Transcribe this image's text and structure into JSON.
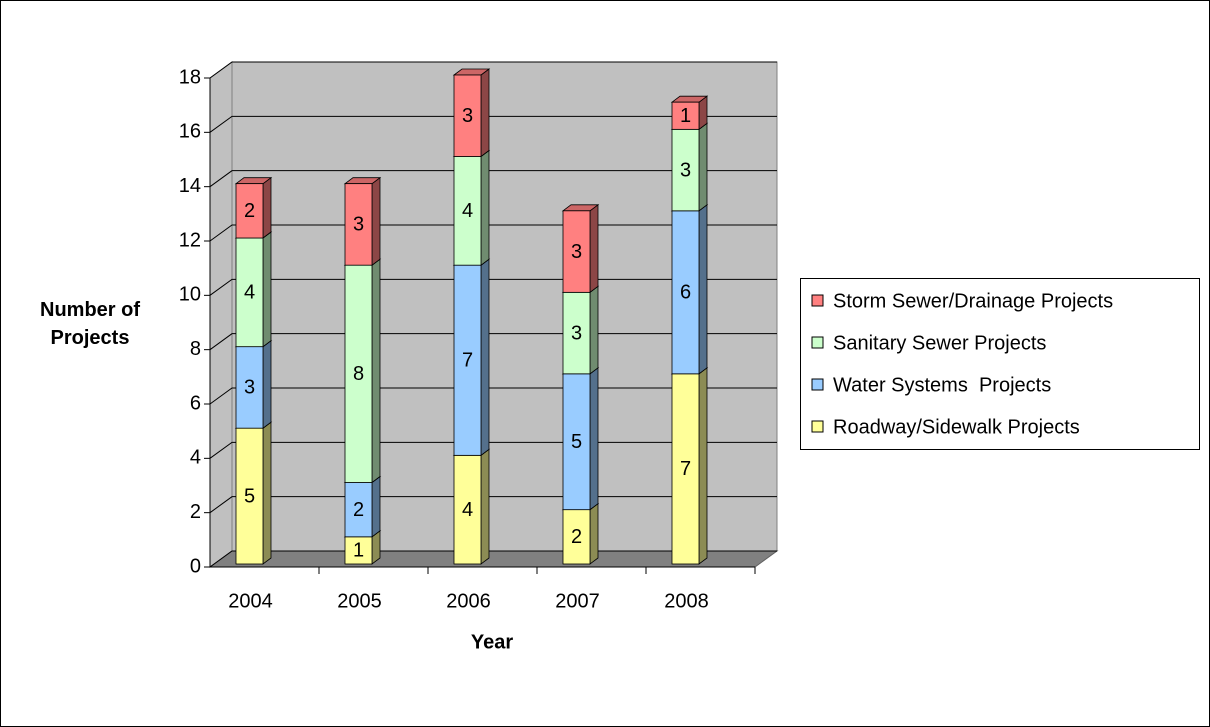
{
  "chart_data": {
    "type": "stacked_bar_3d",
    "x_label": "Year",
    "y_label": "Number of Projects",
    "categories": [
      "2004",
      "2005",
      "2006",
      "2007",
      "2008"
    ],
    "series": [
      {
        "name": "Roadway/Sidewalk Projects",
        "color": "#ffff99",
        "values": [
          5,
          1,
          4,
          2,
          7
        ]
      },
      {
        "name": "Water Systems  Projects",
        "color": "#99ccff",
        "values": [
          3,
          2,
          7,
          5,
          6
        ]
      },
      {
        "name": "Sanitary Sewer Projects",
        "color": "#ccffcc",
        "values": [
          4,
          8,
          4,
          3,
          3
        ]
      },
      {
        "name": "Storm Sewer/Drainage Projects",
        "color": "#ff8080",
        "values": [
          2,
          3,
          3,
          3,
          1
        ]
      }
    ],
    "ylim": [
      0,
      18
    ],
    "yticks": [
      0,
      2,
      4,
      6,
      8,
      10,
      12,
      14,
      16,
      18
    ],
    "grid": true,
    "legend": "right"
  }
}
